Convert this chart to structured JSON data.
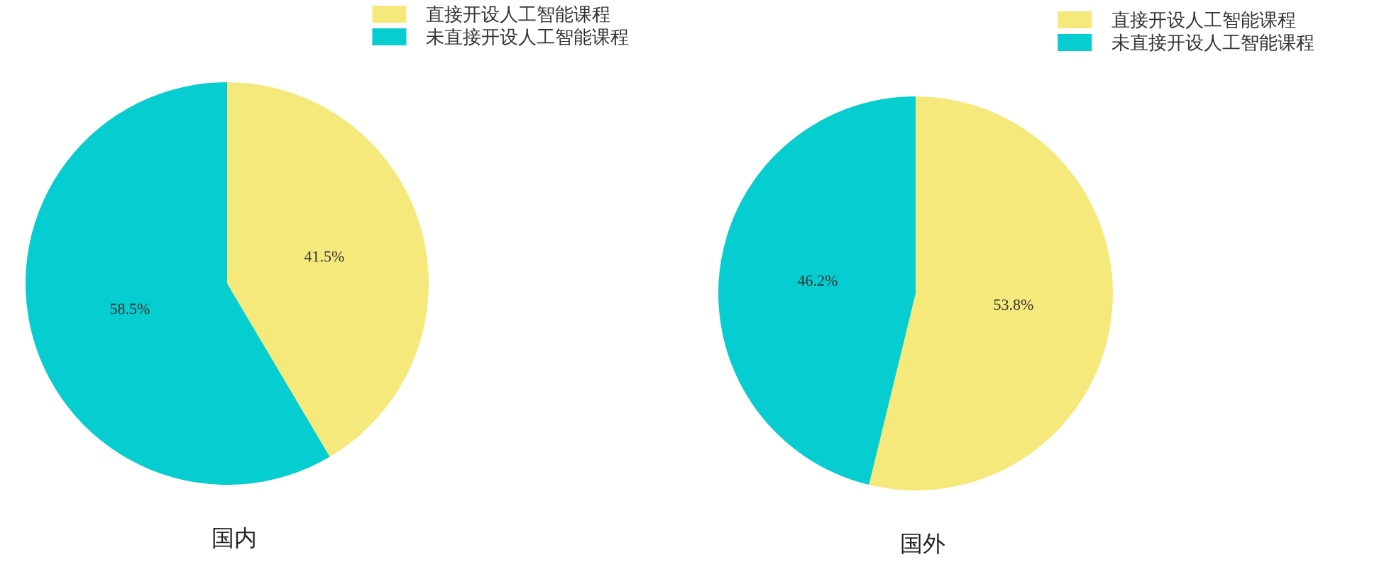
{
  "chart_data": [
    {
      "type": "pie",
      "title": "国内",
      "categories": [
        "直接开设人工智能课程",
        "未直接开设人工智能课程"
      ],
      "values": [
        41.5,
        58.5
      ],
      "colors": [
        "#f6e97c",
        "#05cdd0"
      ],
      "value_labels": [
        "41.5%",
        "58.5%"
      ],
      "legend": "top right"
    },
    {
      "type": "pie",
      "title": "国外",
      "categories": [
        "直接开设人工智能课程",
        "未直接开设人工智能课程"
      ],
      "values": [
        53.8,
        46.2
      ],
      "colors": [
        "#f6e97c",
        "#05cdd0"
      ],
      "value_labels": [
        "53.8%",
        "46.2%"
      ],
      "legend": "top right"
    }
  ]
}
